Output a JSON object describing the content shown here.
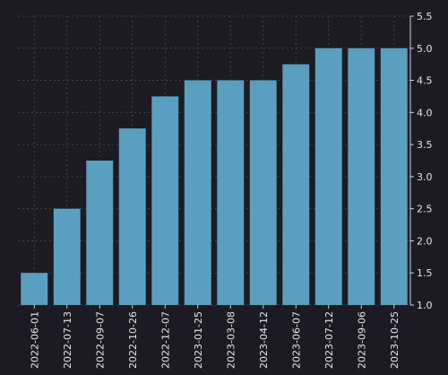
{
  "chart_data": {
    "type": "bar",
    "title": "",
    "xlabel": "",
    "ylabel": "",
    "categories": [
      "2022-06-01",
      "2022-07-13",
      "2022-09-07",
      "2022-10-26",
      "2022-12-07",
      "2023-01-25",
      "2023-03-08",
      "2023-04-12",
      "2023-06-07",
      "2023-07-12",
      "2023-09-06",
      "2023-10-25"
    ],
    "values": [
      1.5,
      2.5,
      3.25,
      3.75,
      4.25,
      4.5,
      4.5,
      4.5,
      4.75,
      5.0,
      5.0,
      5.0
    ],
    "ylim": [
      1.0,
      5.5
    ],
    "yticks": [
      "1.0",
      "1.5",
      "2.0",
      "2.5",
      "3.0",
      "3.5",
      "4.0",
      "4.5",
      "5.0",
      "5.5"
    ],
    "y_axis_side": "right",
    "grid": true,
    "legend": "none",
    "colors": {
      "background": "#1c1b24",
      "bar": "#5b9fc0",
      "text": "#e6e6e6",
      "grid": "#4a4a52"
    }
  }
}
